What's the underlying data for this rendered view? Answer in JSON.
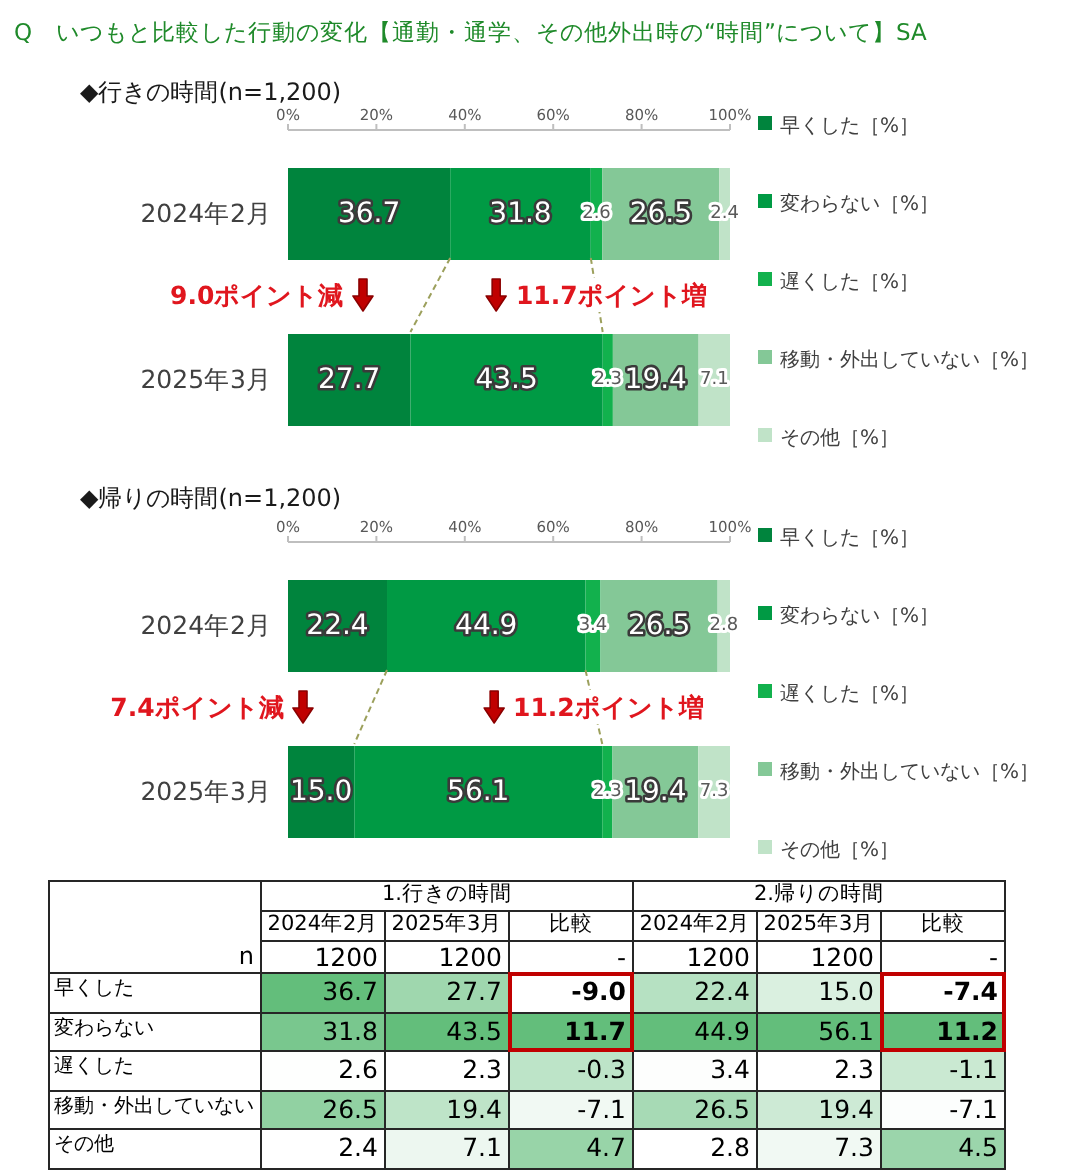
{
  "chart_data": [
    {
      "type": "bar",
      "orientation": "horizontal",
      "stacked": true,
      "title": "Q　いつもと比較した行動の変化【通勤・通学、その他外出時の“時間”について】SA",
      "subtitle": "◆行きの時間(n=1,200)",
      "categories": [
        "2024年2月",
        "2025年3月"
      ],
      "series": [
        {
          "name": "早くした［%］",
          "color": "#00843d",
          "values": [
            36.7,
            27.7
          ],
          "value_labels": [
            "36.7",
            "27.7"
          ]
        },
        {
          "name": "変わらない［%］",
          "color": "#009a44",
          "values": [
            31.8,
            43.5
          ],
          "value_labels": [
            "31.8",
            "43.5"
          ]
        },
        {
          "name": "遅くした［%］",
          "color": "#12b14d",
          "values": [
            2.6,
            2.3
          ],
          "value_labels": [
            "2.6",
            "2.3"
          ]
        },
        {
          "name": "移動・外出していない［%］",
          "color": "#84c897",
          "values": [
            26.5,
            19.4
          ],
          "value_labels": [
            "26.5",
            "19.4"
          ]
        },
        {
          "name": "その他［%］",
          "color": "#c0e3c8",
          "values": [
            2.4,
            7.1
          ],
          "value_labels": [
            "2.4",
            "7.1"
          ]
        }
      ],
      "xlim": [
        0,
        100
      ],
      "xticks": [
        {
          "value": 0,
          "label": "0%"
        },
        {
          "value": 20,
          "label": "20%"
        },
        {
          "value": 40,
          "label": "40%"
        },
        {
          "value": 60,
          "label": "60%"
        },
        {
          "value": 80,
          "label": "80%"
        },
        {
          "value": 100,
          "label": "100%"
        }
      ],
      "legend": "right",
      "annotations": [
        "9.0ポイント減",
        "11.7ポイント増"
      ]
    },
    {
      "type": "bar",
      "orientation": "horizontal",
      "stacked": true,
      "title": "◆帰りの時間(n=1,200)",
      "categories": [
        "2024年2月",
        "2025年3月"
      ],
      "series": [
        {
          "name": "早くした［%］",
          "color": "#00843d",
          "values": [
            22.4,
            15.0
          ],
          "value_labels": [
            "22.4",
            "15.0"
          ]
        },
        {
          "name": "変わらない［%］",
          "color": "#009a44",
          "values": [
            44.9,
            56.1
          ],
          "value_labels": [
            "44.9",
            "56.1"
          ]
        },
        {
          "name": "遅くした［%］",
          "color": "#12b14d",
          "values": [
            3.4,
            2.3
          ],
          "value_labels": [
            "3.4",
            "2.3"
          ]
        },
        {
          "name": "移動・外出していない［%］",
          "color": "#84c897",
          "values": [
            26.5,
            19.4
          ],
          "value_labels": [
            "26.5",
            "19.4"
          ]
        },
        {
          "name": "その他［%］",
          "color": "#c0e3c8",
          "values": [
            2.8,
            7.3
          ],
          "value_labels": [
            "2.8",
            "7.3"
          ]
        }
      ],
      "xlim": [
        0,
        100
      ],
      "xticks": [
        {
          "value": 0,
          "label": "0%"
        },
        {
          "value": 20,
          "label": "20%"
        },
        {
          "value": 40,
          "label": "40%"
        },
        {
          "value": 60,
          "label": "60%"
        },
        {
          "value": 80,
          "label": "80%"
        },
        {
          "value": 100,
          "label": "100%"
        }
      ],
      "legend": "right",
      "annotations": [
        "7.4ポイント減",
        "11.2ポイント増"
      ]
    },
    {
      "type": "heatmap",
      "annotations": [
        "1.行きの時間",
        "2.帰りの時間"
      ],
      "categories": [
        "2024年2月",
        "2025年3月",
        "比較",
        "2024年2月",
        "2025年3月",
        "比較"
      ],
      "y_categories": [
        "n",
        "早くした",
        "変わらない",
        "遅くした",
        "移動・外出していない",
        "その他"
      ],
      "cells": [
        [
          null,
          null,
          null,
          null,
          null,
          null
        ],
        [
          36.7,
          27.7,
          -9.0,
          22.4,
          15.0,
          -7.4
        ],
        [
          31.8,
          43.5,
          11.7,
          44.9,
          56.1,
          11.2
        ],
        [
          2.6,
          2.3,
          -0.3,
          3.4,
          2.3,
          -1.1
        ],
        [
          26.5,
          19.4,
          -7.1,
          26.5,
          19.4,
          -7.1
        ],
        [
          2.4,
          7.1,
          4.7,
          2.8,
          7.3,
          4.5
        ]
      ],
      "cell_labels": [
        [
          "1200",
          "1200",
          "-",
          "1200",
          "1200",
          "-"
        ],
        [
          "36.7",
          "27.7",
          "-9.0",
          "22.4",
          "15.0",
          "-7.4"
        ],
        [
          "31.8",
          "43.5",
          "11.7",
          "44.9",
          "56.1",
          "11.2"
        ],
        [
          "2.6",
          "2.3",
          "-0.3",
          "3.4",
          "2.3",
          "-1.1"
        ],
        [
          "26.5",
          "19.4",
          "-7.1",
          "26.5",
          "19.4",
          "-7.1"
        ],
        [
          "2.4",
          "7.1",
          "4.7",
          "2.8",
          "7.3",
          "4.5"
        ]
      ]
    }
  ]
}
